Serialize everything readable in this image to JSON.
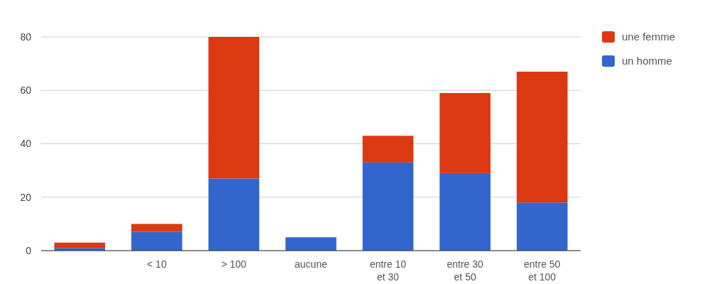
{
  "chart_data": {
    "type": "bar",
    "stacked": true,
    "categories": [
      null,
      "< 10",
      "> 100",
      "aucune",
      "entre 10 et 30",
      "entre 30 et 50",
      "entre 50 et 100"
    ],
    "series": [
      {
        "name": "un homme",
        "color": "#3366cc",
        "values": [
          1,
          7,
          27,
          5,
          33,
          29,
          18
        ]
      },
      {
        "name": "une femme",
        "color": "#dc3912",
        "values": [
          2,
          3,
          53,
          0,
          10,
          30,
          49
        ]
      }
    ],
    "ylim": [
      0,
      80
    ],
    "yticks": [
      0,
      20,
      40,
      60,
      80
    ],
    "grid": "y",
    "legend": "right"
  }
}
